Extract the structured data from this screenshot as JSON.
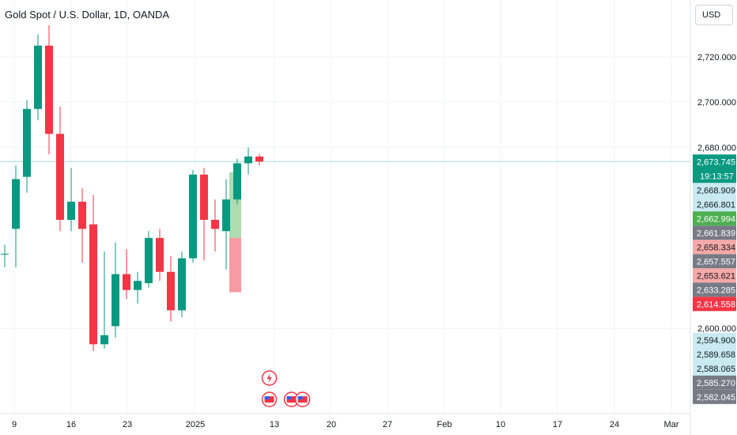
{
  "title": "Gold Spot / U.S. Dollar, 1D, OANDA",
  "currency": "USD",
  "last_price": "2,673.745",
  "countdown": "19:13:57",
  "colors": {
    "up": "#089981",
    "down": "#f23645",
    "grid": "#f0f3fa"
  },
  "chart_data": {
    "type": "candlestick",
    "y_axis": {
      "ticks": [
        "2,720.000",
        "2,700.000",
        "2,680.000",
        "2,600.000"
      ],
      "range": [
        2576,
        2752
      ]
    },
    "x_axis": {
      "ticks": [
        "9",
        "16",
        "23",
        "2025",
        "13",
        "20",
        "27",
        "Feb",
        "10",
        "17",
        "24",
        "Mar"
      ]
    },
    "candles": [
      {
        "o": 2633,
        "h": 2637,
        "l": 2627,
        "c": 2633
      },
      {
        "o": 2644,
        "h": 2672,
        "l": 2627,
        "c": 2666
      },
      {
        "o": 2667,
        "h": 2701,
        "l": 2660,
        "c": 2697
      },
      {
        "o": 2697,
        "h": 2730,
        "l": 2692,
        "c": 2725
      },
      {
        "o": 2725,
        "h": 2734,
        "l": 2677,
        "c": 2686
      },
      {
        "o": 2686,
        "h": 2698,
        "l": 2643,
        "c": 2648
      },
      {
        "o": 2648,
        "h": 2671,
        "l": 2643,
        "c": 2656
      },
      {
        "o": 2656,
        "h": 2662,
        "l": 2629,
        "c": 2644
      },
      {
        "o": 2646,
        "h": 2659,
        "l": 2590,
        "c": 2593
      },
      {
        "o": 2593,
        "h": 2634,
        "l": 2591,
        "c": 2597
      },
      {
        "o": 2601,
        "h": 2638,
        "l": 2596,
        "c": 2624
      },
      {
        "o": 2624,
        "h": 2635,
        "l": 2613,
        "c": 2617
      },
      {
        "o": 2617,
        "h": 2625,
        "l": 2611,
        "c": 2621
      },
      {
        "o": 2620,
        "h": 2643,
        "l": 2618,
        "c": 2640
      },
      {
        "o": 2640,
        "h": 2644,
        "l": 2621,
        "c": 2625
      },
      {
        "o": 2625,
        "h": 2632,
        "l": 2603,
        "c": 2608
      },
      {
        "o": 2608,
        "h": 2634,
        "l": 2605,
        "c": 2631
      },
      {
        "o": 2631,
        "h": 2670,
        "l": 2629,
        "c": 2668
      },
      {
        "o": 2668,
        "h": 2671,
        "l": 2630,
        "c": 2648
      },
      {
        "o": 2648,
        "h": 2657,
        "l": 2634,
        "c": 2644
      },
      {
        "o": 2643,
        "h": 2666,
        "l": 2626,
        "c": 2657
      },
      {
        "o": 2657,
        "h": 2675,
        "l": 2655,
        "c": 2673
      },
      {
        "o": 2673,
        "h": 2680,
        "l": 2668,
        "c": 2676
      },
      {
        "o": 2676,
        "h": 2677,
        "l": 2672,
        "c": 2673.745
      }
    ],
    "position": {
      "entry": 2640,
      "target": 2669,
      "stop": 2616
    },
    "price_labels": [
      {
        "text": "2,673.745",
        "price": 2673.745,
        "bg": "#089981",
        "fg": "#ffffff"
      },
      {
        "text": "2,668.909",
        "price": 2668.909,
        "bg": "#c8eaf0",
        "fg": "#131722"
      },
      {
        "text": "2,666.801",
        "price": 2666.801,
        "bg": "#c8eaf0",
        "fg": "#131722"
      },
      {
        "text": "2,662.994",
        "price": 2662.994,
        "bg": "#4caf50",
        "fg": "#ffffff"
      },
      {
        "text": "2,661.839",
        "price": 2661.839,
        "bg": "#787b86",
        "fg": "#ffffff"
      },
      {
        "text": "2,658.334",
        "price": 2658.334,
        "bg": "#f7a9a7",
        "fg": "#131722"
      },
      {
        "text": "2,657.557",
        "price": 2657.557,
        "bg": "#787b86",
        "fg": "#ffffff"
      },
      {
        "text": "2,653.621",
        "price": 2653.621,
        "bg": "#f7a9a7",
        "fg": "#131722"
      },
      {
        "text": "2,633.285",
        "price": 2633.285,
        "bg": "#787b86",
        "fg": "#ffffff"
      },
      {
        "text": "2,614.558",
        "price": 2614.558,
        "bg": "#f23645",
        "fg": "#ffffff"
      },
      {
        "text": "2,594.900",
        "price": 2594.9,
        "bg": "#c8eaf0",
        "fg": "#131722"
      },
      {
        "text": "2,589.658",
        "price": 2589.658,
        "bg": "#c8eaf0",
        "fg": "#131722"
      },
      {
        "text": "2,588.065",
        "price": 2588.065,
        "bg": "#c8eaf0",
        "fg": "#131722"
      },
      {
        "text": "2,585.270",
        "price": 2585.27,
        "bg": "#787b86",
        "fg": "#ffffff"
      },
      {
        "text": "2,582.045",
        "price": 2582.045,
        "bg": "#787b86",
        "fg": "#ffffff"
      }
    ],
    "events": [
      {
        "icon": "lightning-icon",
        "col": 23.9,
        "row": 0
      },
      {
        "icon": "us-flag-icon",
        "col": 23.9,
        "row": 1
      },
      {
        "icon": "us-flag-icon",
        "col": 25.9,
        "row": 1
      },
      {
        "icon": "us-flag-icon",
        "col": 26.9,
        "row": 1
      }
    ]
  }
}
